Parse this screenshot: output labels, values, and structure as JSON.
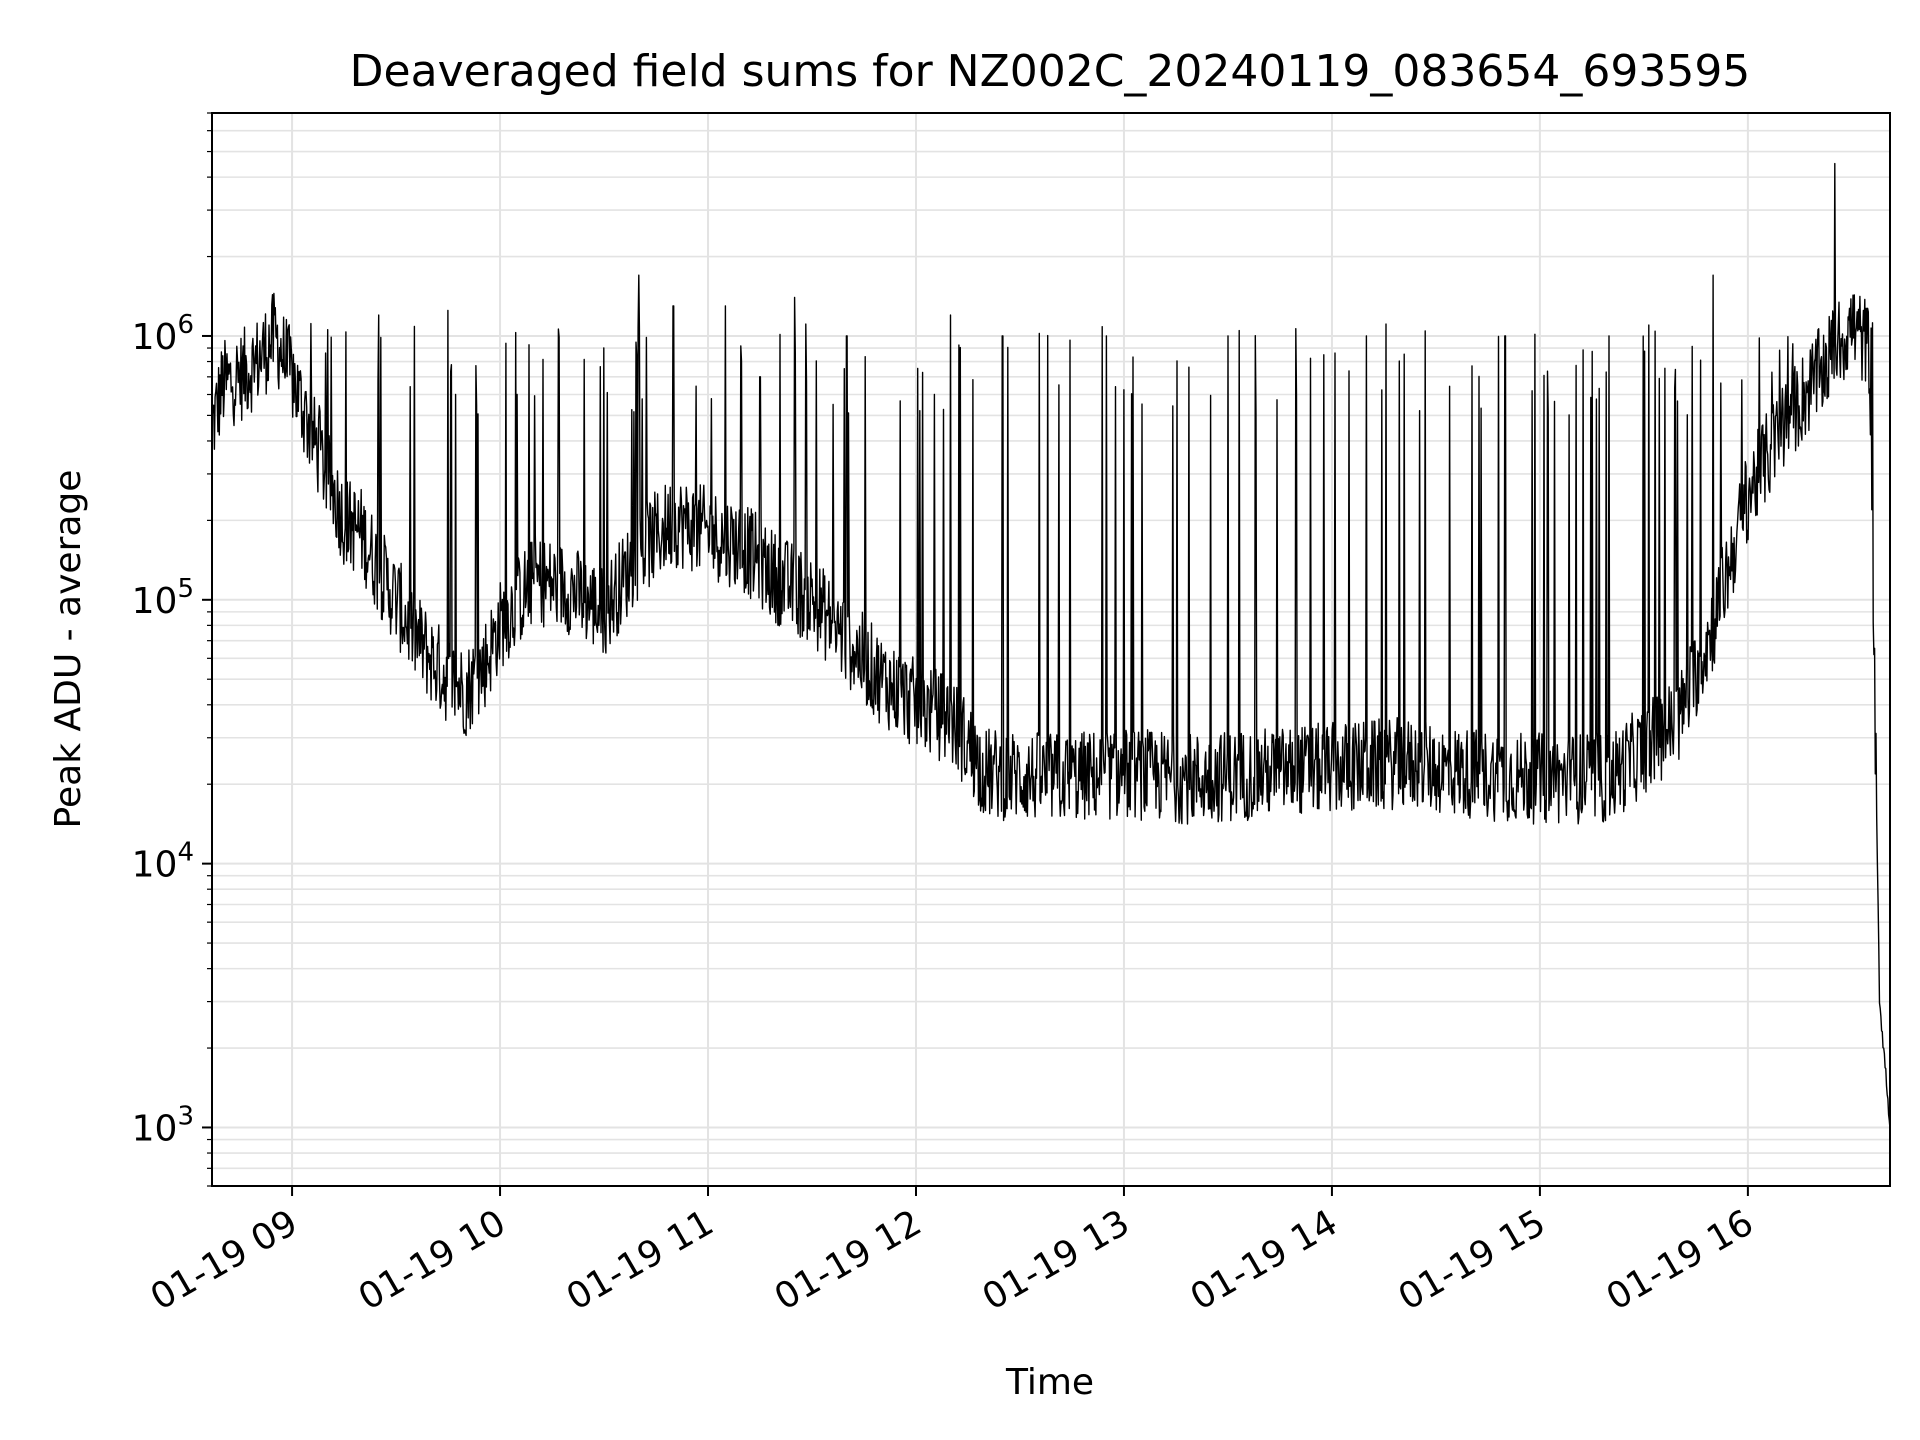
{
  "chart_data": {
    "type": "line",
    "title": "Deaveraged field sums for NZ002C_20240119_083654_693595",
    "xlabel": "Time",
    "ylabel": "Peak ADU - average",
    "yscale": "log",
    "ylim": [
      600,
      7000000
    ],
    "xlim": [
      "2024-01-19 08:36:54",
      "2024-01-19 16:41:00"
    ],
    "grid": true,
    "line_color": "#000000",
    "x_ticks": [
      {
        "x": "2024-01-19 09:00",
        "label": "01-19 09"
      },
      {
        "x": "2024-01-19 10:00",
        "label": "01-19 10"
      },
      {
        "x": "2024-01-19 11:00",
        "label": "01-19 11"
      },
      {
        "x": "2024-01-19 12:00",
        "label": "01-19 12"
      },
      {
        "x": "2024-01-19 13:00",
        "label": "01-19 13"
      },
      {
        "x": "2024-01-19 14:00",
        "label": "01-19 14"
      },
      {
        "x": "2024-01-19 15:00",
        "label": "01-19 15"
      },
      {
        "x": "2024-01-19 16:00",
        "label": "01-19 16"
      }
    ],
    "y_ticks": [
      {
        "value": 1000,
        "base": "10",
        "exp": "3"
      },
      {
        "value": 10000,
        "base": "10",
        "exp": "4"
      },
      {
        "value": 100000,
        "base": "10",
        "exp": "5"
      },
      {
        "value": 1000000,
        "base": "10",
        "exp": "6"
      }
    ],
    "series": [
      {
        "approximate": true,
        "points": [
          [
            "2024-01-19 08:37",
            450000
          ],
          [
            "2024-01-19 08:40",
            650000
          ],
          [
            "2024-01-19 08:45",
            700000
          ],
          [
            "2024-01-19 08:50",
            800000
          ],
          [
            "2024-01-19 08:55",
            1000000
          ],
          [
            "2024-01-19 09:00",
            700000
          ],
          [
            "2024-01-19 09:05",
            450000
          ],
          [
            "2024-01-19 09:10",
            300000
          ],
          [
            "2024-01-19 09:15",
            200000
          ],
          [
            "2024-01-19 09:20",
            180000
          ],
          [
            "2024-01-19 09:25",
            130000
          ],
          [
            "2024-01-19 09:30",
            100000
          ],
          [
            "2024-01-19 09:35",
            75000
          ],
          [
            "2024-01-19 09:40",
            60000
          ],
          [
            "2024-01-19 09:45",
            50000
          ],
          [
            "2024-01-19 09:50",
            45000
          ],
          [
            "2024-01-19 09:55",
            55000
          ],
          [
            "2024-01-19 10:00",
            80000
          ],
          [
            "2024-01-19 10:10",
            120000
          ],
          [
            "2024-01-19 10:20",
            110000
          ],
          [
            "2024-01-19 10:30",
            90000
          ],
          [
            "2024-01-19 10:40",
            150000
          ],
          [
            "2024-01-19 10:50",
            200000
          ],
          [
            "2024-01-19 11:00",
            180000
          ],
          [
            "2024-01-19 11:10",
            160000
          ],
          [
            "2024-01-19 11:20",
            120000
          ],
          [
            "2024-01-19 11:30",
            100000
          ],
          [
            "2024-01-19 11:40",
            70000
          ],
          [
            "2024-01-19 11:50",
            50000
          ],
          [
            "2024-01-19 12:00",
            40000
          ],
          [
            "2024-01-19 12:10",
            35000
          ],
          [
            "2024-01-19 12:15",
            28000
          ],
          [
            "2024-01-19 12:20",
            22000
          ],
          [
            "2024-01-19 12:40",
            21000
          ],
          [
            "2024-01-19 13:00",
            22000
          ],
          [
            "2024-01-19 13:20",
            21000
          ],
          [
            "2024-01-19 13:40",
            22000
          ],
          [
            "2024-01-19 14:00",
            23000
          ],
          [
            "2024-01-19 14:20",
            24000
          ],
          [
            "2024-01-19 14:40",
            22000
          ],
          [
            "2024-01-19 15:00",
            21000
          ],
          [
            "2024-01-19 15:20",
            21000
          ],
          [
            "2024-01-19 15:40",
            35000
          ],
          [
            "2024-01-19 15:50",
            80000
          ],
          [
            "2024-01-19 16:00",
            250000
          ],
          [
            "2024-01-19 16:10",
            450000
          ],
          [
            "2024-01-19 16:20",
            700000
          ],
          [
            "2024-01-19 16:30",
            1100000
          ],
          [
            "2024-01-19 16:35",
            900000
          ],
          [
            "2024-01-19 16:38",
            3000
          ],
          [
            "2024-01-19 16:40",
            1500
          ],
          [
            "2024-01-19 16:41",
            1000
          ]
        ],
        "spikes": [
          [
            "2024-01-19 09:25",
            1200000
          ],
          [
            "2024-01-19 09:45",
            1250000
          ],
          [
            "2024-01-19 10:05",
            600000
          ],
          [
            "2024-01-19 10:30",
            900000
          ],
          [
            "2024-01-19 10:40",
            1700000
          ],
          [
            "2024-01-19 10:50",
            1300000
          ],
          [
            "2024-01-19 11:05",
            1300000
          ],
          [
            "2024-01-19 11:15",
            700000
          ],
          [
            "2024-01-19 11:25",
            1400000
          ],
          [
            "2024-01-19 11:40",
            1000000
          ],
          [
            "2024-01-19 12:10",
            1200000
          ],
          [
            "2024-01-19 12:25",
            1000000
          ],
          [
            "2024-01-19 12:55",
            1000000
          ],
          [
            "2024-01-19 13:30",
            1000000
          ],
          [
            "2024-01-19 14:10",
            1000000
          ],
          [
            "2024-01-19 14:50",
            1000000
          ],
          [
            "2024-01-19 15:20",
            1000000
          ],
          [
            "2024-01-19 15:50",
            1700000
          ],
          [
            "2024-01-19 16:25",
            4500000
          ]
        ]
      }
    ]
  }
}
